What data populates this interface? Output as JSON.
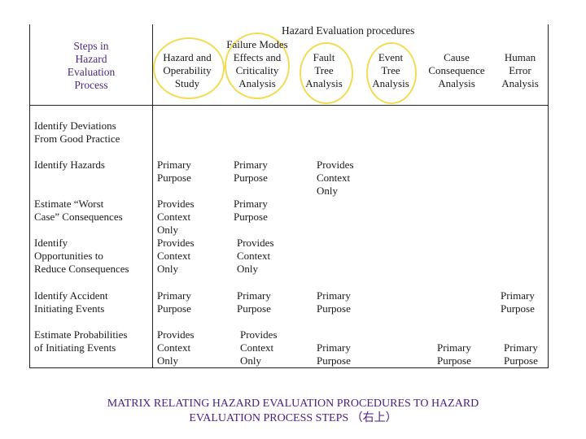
{
  "header": {
    "group_title": "Hazard Evaluation procedures",
    "steps_title": [
      "Steps in",
      "Hazard",
      "Evaluation",
      "Process"
    ],
    "columns": [
      [
        "Hazard and",
        "Operability",
        "Study"
      ],
      [
        "Failure Modes",
        "Effects and",
        "Criticality",
        "Analysis"
      ],
      [
        "Fault",
        "Tree",
        "Analysis"
      ],
      [
        "Event",
        "Tree",
        "Analysis"
      ],
      [
        "Cause",
        "Consequence",
        "Analysis"
      ],
      [
        "Human",
        "Error",
        "Analysis"
      ]
    ]
  },
  "rows": [
    {
      "step": [
        "Identify Deviations",
        "From Good Practice"
      ],
      "cells": [
        [],
        [],
        [],
        [],
        [],
        []
      ]
    },
    {
      "step": [
        "Identify Hazards"
      ],
      "cells": [
        [
          "Primary",
          "Purpose"
        ],
        [
          "Primary",
          "Purpose"
        ],
        [
          "Provides",
          "Context",
          "Only"
        ],
        [],
        [],
        []
      ]
    },
    {
      "step": [
        "Estimate “Worst",
        "Case” Consequences"
      ],
      "cells": [
        [
          "Provides",
          "Context",
          "Only"
        ],
        [
          "Primary",
          "Purpose"
        ],
        [],
        [],
        [],
        []
      ]
    },
    {
      "step": [
        "Identify",
        "Opportunities to",
        "Reduce Consequences"
      ],
      "cells": [
        [
          "Provides",
          "Context",
          "Only"
        ],
        [
          "Provides",
          "Context",
          "Only"
        ],
        [],
        [],
        [],
        []
      ]
    },
    {
      "step": [
        "Identify Accident",
        "Initiating Events"
      ],
      "cells": [
        [
          "Primary",
          "Purpose"
        ],
        [
          "Primary",
          "Purpose"
        ],
        [
          "Primary",
          "Purpose"
        ],
        [],
        [],
        [
          "Primary",
          "Purpose"
        ]
      ]
    },
    {
      "step": [
        "Estimate Probabilities",
        "of Initiating Events"
      ],
      "cells": [
        [
          "Provides",
          "Context",
          "Only"
        ],
        [
          "Provides",
          "Context",
          "Only"
        ],
        [
          "Primary",
          "Purpose"
        ],
        [],
        [
          "Primary",
          "Purpose"
        ],
        [
          "Primary",
          "Purpose"
        ]
      ]
    }
  ],
  "caption": [
    "MATRIX RELATING HAZARD EVALUATION PROCEDURES TO HAZARD",
    "EVALUATION PROCESS STEPS （右上）"
  ],
  "colors": {
    "highlight_circle": "#f2dc55",
    "title_text": "#4a2a7a",
    "caption_text": "#4a2080"
  }
}
